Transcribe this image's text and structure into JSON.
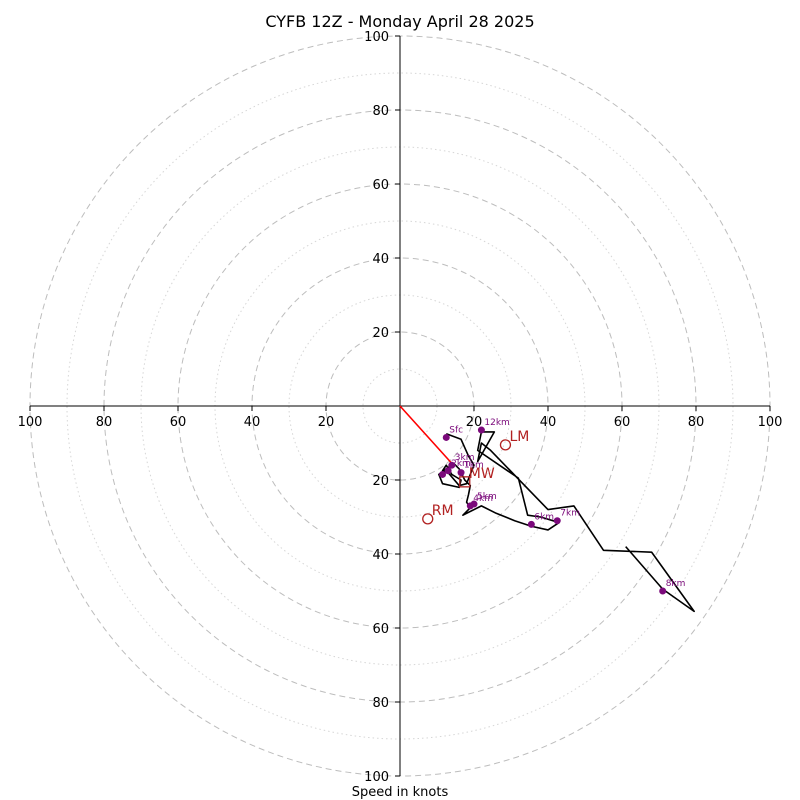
{
  "chart_data": {
    "type": "hodograph",
    "title": "CYFB 12Z - Monday April 28 2025",
    "xlabel": "Speed in knots",
    "units": "knots",
    "range": [
      -100,
      100
    ],
    "rings_major": [
      20,
      40,
      60,
      80,
      100
    ],
    "rings_minor": [
      10,
      30,
      50,
      70,
      90
    ],
    "tick_labels": {
      "x_left": [
        "100",
        "80",
        "60",
        "40",
        "20"
      ],
      "x_right": [
        "20",
        "40",
        "60",
        "80",
        "100"
      ],
      "y_top": [
        "100",
        "80",
        "60",
        "40",
        "20"
      ],
      "y_bottom": [
        "20",
        "40",
        "60",
        "80",
        "100"
      ]
    },
    "hodograph_trace": [
      [
        12.5,
        -7.5
      ],
      [
        16.5,
        -9.0
      ],
      [
        18.5,
        -13.5
      ],
      [
        20.0,
        -16.0
      ],
      [
        18.0,
        -21.0
      ],
      [
        16.0,
        -21.5
      ],
      [
        13.0,
        -18.0
      ],
      [
        11.5,
        -17.5
      ],
      [
        12.5,
        -16.0
      ],
      [
        14.0,
        -18.5
      ],
      [
        16.5,
        -20.0
      ],
      [
        16.0,
        -22.0
      ],
      [
        11.5,
        -21.0
      ],
      [
        10.5,
        -18.5
      ],
      [
        12.5,
        -17.0
      ],
      [
        14.5,
        -15.5
      ],
      [
        16.0,
        -17.0
      ],
      [
        17.5,
        -20.0
      ],
      [
        19.0,
        -21.5
      ],
      [
        18.5,
        -24.0
      ],
      [
        18.0,
        -26.0
      ],
      [
        19.0,
        -27.5
      ],
      [
        17.0,
        -29.5
      ],
      [
        22.0,
        -27.0
      ],
      [
        26.0,
        -29.0
      ],
      [
        31.0,
        -31.0
      ],
      [
        35.5,
        -32.5
      ],
      [
        40.0,
        -33.5
      ],
      [
        43.0,
        -31.5
      ],
      [
        38.0,
        -30.0
      ],
      [
        34.5,
        -29.5
      ],
      [
        32.0,
        -19.5
      ],
      [
        21.0,
        -12.0
      ],
      [
        22.0,
        -7.0
      ],
      [
        25.5,
        -7.0
      ],
      [
        21.0,
        -15.0
      ],
      [
        22.0,
        -10.0
      ],
      [
        24.5,
        -12.0
      ],
      [
        40.0,
        -28.0
      ],
      [
        47.0,
        -27.0
      ],
      [
        55.0,
        -39.0
      ],
      [
        68.0,
        -39.5
      ],
      [
        79.5,
        -55.5
      ],
      [
        71.0,
        -49.5
      ],
      [
        61.0,
        -38.0
      ]
    ],
    "height_markers": [
      {
        "label": "Sfc",
        "u": 12.5,
        "v": -8.5
      },
      {
        "label": "12km",
        "u": 22.0,
        "v": -6.5
      },
      {
        "label": "3km",
        "u": 14.0,
        "v": -16.0
      },
      {
        "label": "2km",
        "u": 13.0,
        "v": -17.5
      },
      {
        "label": "1km",
        "u": 16.5,
        "v": -18.0
      },
      {
        "label": "",
        "u": 11.5,
        "v": -18.5
      },
      {
        "label": "5km",
        "u": 20.0,
        "v": -26.5
      },
      {
        "label": "4km",
        "u": 19.0,
        "v": -27.0
      },
      {
        "label": "6km",
        "u": 35.5,
        "v": -32.0
      },
      {
        "label": "7km",
        "u": 42.5,
        "v": -31.0
      },
      {
        "label": "8km",
        "u": 71.0,
        "v": -50.0
      }
    ],
    "storm_motions": [
      {
        "label": "LM",
        "u": 28.5,
        "v": -10.5,
        "marker": "circle"
      },
      {
        "label": "MW",
        "u": 17.5,
        "v": -20.5,
        "marker": "square"
      },
      {
        "label": "RM",
        "u": 7.5,
        "v": -30.5,
        "marker": "circle"
      }
    ],
    "shear_vector": {
      "from": [
        0,
        0
      ],
      "to": [
        14.0,
        -15.5
      ]
    },
    "colors": {
      "trace": "#000000",
      "markers": "#7b0a7b",
      "storm_motion": "#b22222",
      "shear_vector": "#ff0000",
      "ring_major": "#bdbdbd",
      "ring_minor": "#d6d6d6"
    }
  }
}
